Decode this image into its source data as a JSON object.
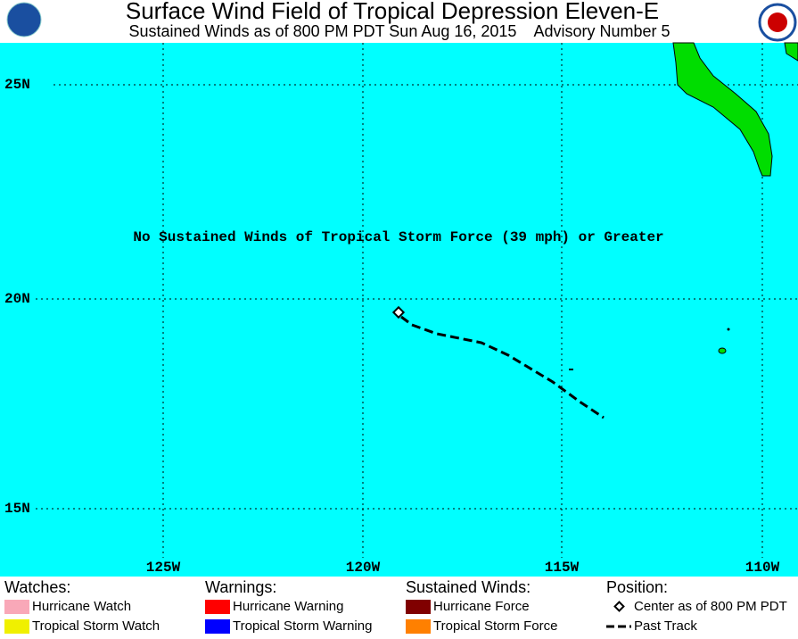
{
  "header": {
    "title": "Surface Wind Field of Tropical Depression Eleven-E",
    "subtitle": "Sustained Winds as of 800 PM PDT Sun Aug 16, 2015    Advisory Number 5"
  },
  "map": {
    "message": "No Sustained Winds of Tropical Storm Force (39 mph) or Greater",
    "lat_labels": [
      "25N",
      "20N",
      "15N"
    ],
    "lon_labels": [
      "125W",
      "120W",
      "115W",
      "110W"
    ]
  },
  "legend": {
    "sections": [
      {
        "heading": "Watches:",
        "items": [
          {
            "label": "Hurricane Watch",
            "color": "#f9a8b8"
          },
          {
            "label": "Tropical Storm Watch",
            "color": "#f0f000"
          }
        ]
      },
      {
        "heading": "Warnings:",
        "items": [
          {
            "label": "Hurricane Warning",
            "color": "#ff0000"
          },
          {
            "label": "Tropical Storm Warning",
            "color": "#0000ff"
          }
        ]
      },
      {
        "heading": "Sustained Winds:",
        "items": [
          {
            "label": "Hurricane Force",
            "color": "#800000"
          },
          {
            "label": "Tropical Storm Force",
            "color": "#ff8000"
          }
        ]
      },
      {
        "heading": "Position:",
        "items": [
          {
            "label": "Center as of 800 PM PDT"
          },
          {
            "label": "Past Track"
          }
        ]
      }
    ]
  }
}
